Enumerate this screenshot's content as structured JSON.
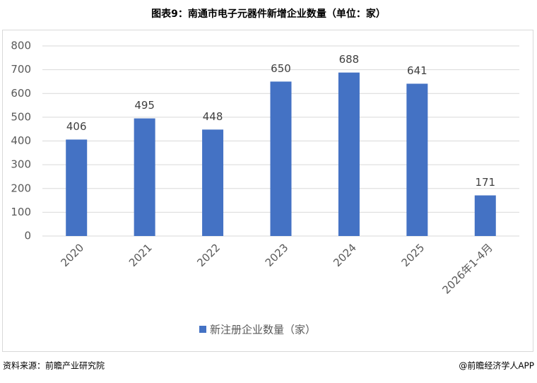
{
  "chart_data": {
    "type": "bar",
    "title": "图表9：南通市电子元器件新增企业数量（单位：家）",
    "categories": [
      "2020",
      "2021",
      "2022",
      "2023",
      "2024",
      "2025",
      "2026年1-4月"
    ],
    "series": [
      {
        "name": "新注册企业数量（家）",
        "color": "#4472c4",
        "values": [
          406,
          495,
          448,
          650,
          688,
          641,
          171
        ]
      }
    ],
    "ylim": [
      0,
      800
    ],
    "yticks": [
      0,
      100,
      200,
      300,
      400,
      500,
      600,
      700,
      800
    ],
    "grid": true,
    "source": "资料来源：前瞻产业研究院",
    "credit": "@前瞻经济学人APP"
  }
}
